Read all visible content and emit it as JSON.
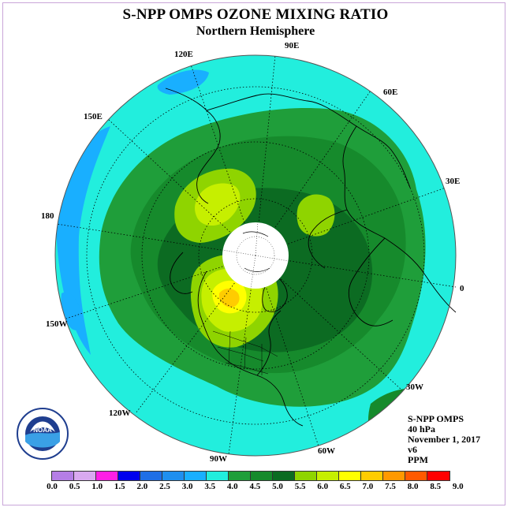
{
  "title": "S-NPP OMPS OZONE MIXING RATIO",
  "subtitle": "Northern Hemisphere",
  "longitude_labels": [
    "90E",
    "60E",
    "30E",
    "0",
    "30W",
    "60W",
    "90W",
    "120W",
    "150W",
    "180",
    "150E",
    "120E"
  ],
  "info": {
    "instrument": "S-NPP OMPS",
    "level": "40 hPa",
    "date": "November 1, 2017",
    "version": "v6",
    "units": "PPM"
  },
  "logo": {
    "text": "NOAA"
  },
  "colorbar": {
    "ticks": [
      "0.0",
      "0.5",
      "1.0",
      "1.5",
      "2.0",
      "2.5",
      "3.0",
      "3.5",
      "4.0",
      "4.5",
      "5.0",
      "5.5",
      "6.0",
      "6.5",
      "7.0",
      "7.5",
      "8.0",
      "8.5",
      "9.0"
    ],
    "colors": [
      "#b57ee6",
      "#d9a9f0",
      "#ff1fe6",
      "#0000ee",
      "#1f6fe6",
      "#1f8fef",
      "#19afff",
      "#22eedd",
      "#1f9e3a",
      "#168a2c",
      "#0c6b22",
      "#8fd400",
      "#c6ef00",
      "#ffff00",
      "#ffcc00",
      "#ff9900",
      "#ff5a00",
      "#ff0000",
      "#8b5a3c"
    ]
  },
  "colors": {
    "background_ocean": "#22eedd",
    "low_blue": "#19afff",
    "mid_green": "#168a2c",
    "dark_green": "#0c6b22",
    "light_green": "#1f9e3a",
    "yellow_green": "#8fd400",
    "yellow": "#c6ef00",
    "orange": "#ffcc00",
    "polar_hole": "#ffffff"
  }
}
